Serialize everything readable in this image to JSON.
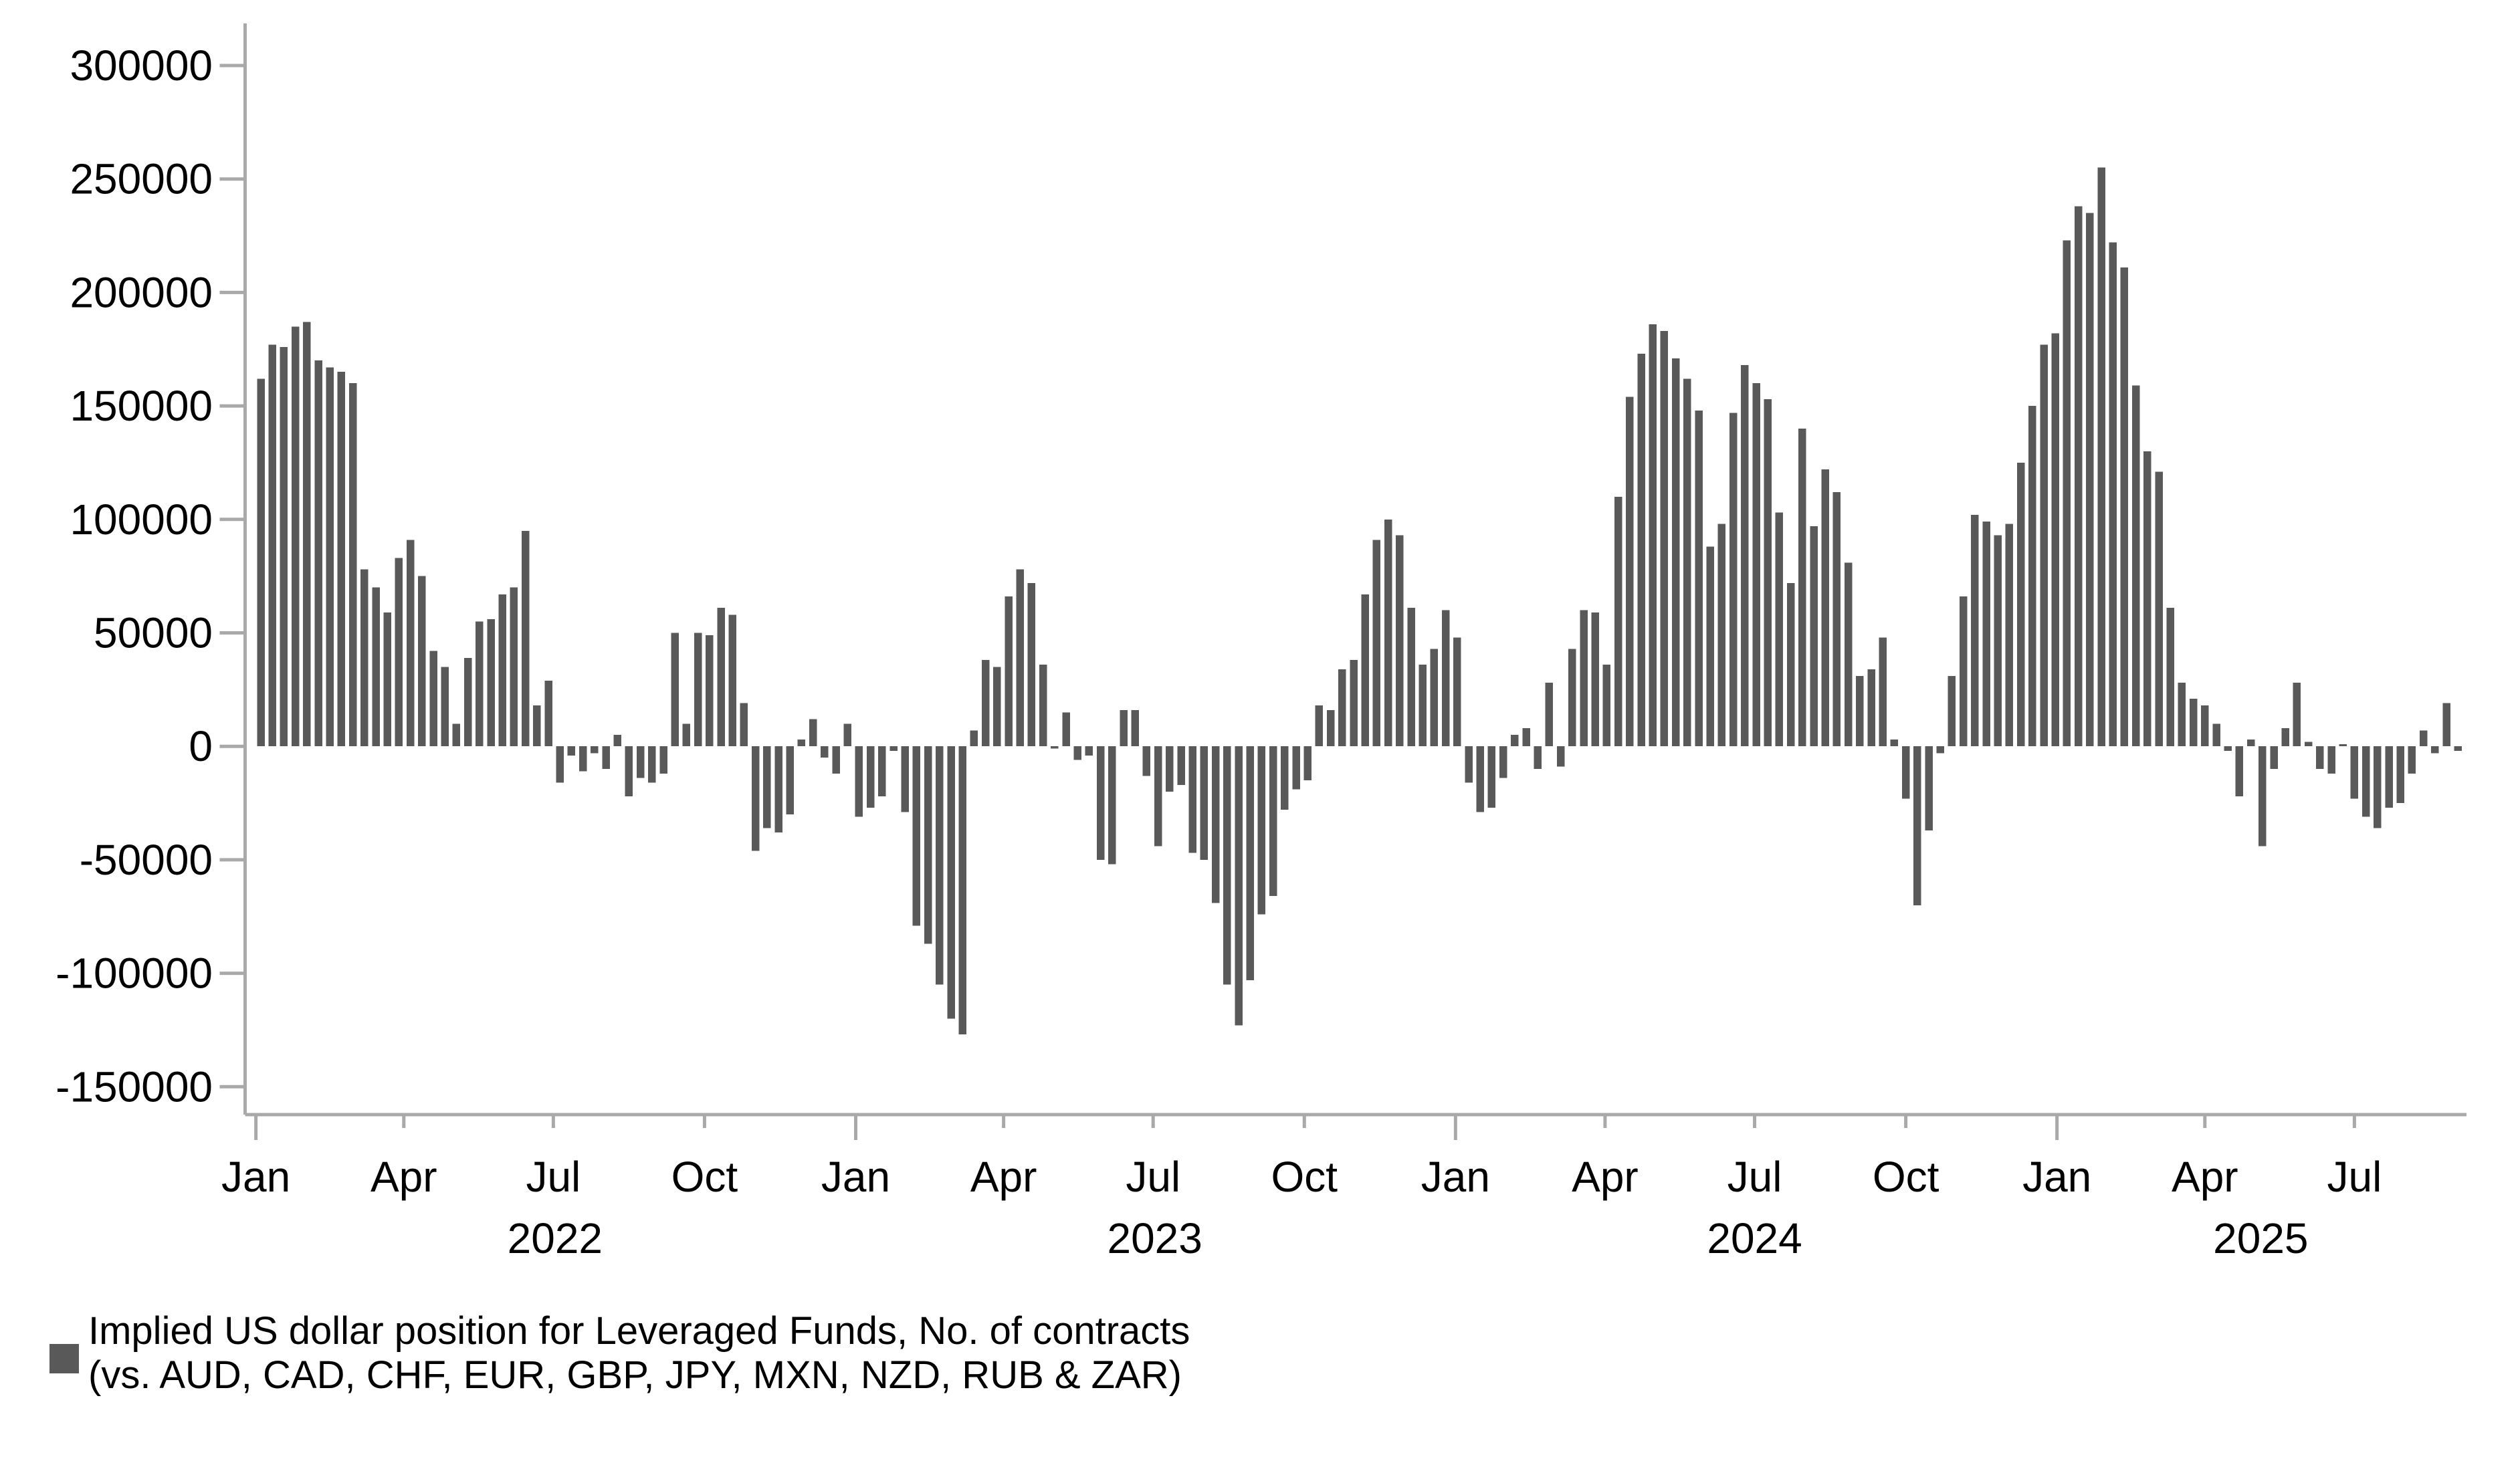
{
  "chart_data": {
    "type": "bar",
    "title": "",
    "xlabel": "",
    "ylabel": "",
    "ylim": [
      -150000,
      300000
    ],
    "grid": false,
    "legend_position": "bottom-left",
    "bar_color": "#595959",
    "axis_color": "#a9a9a9",
    "text_color": "#000000",
    "yticks": [
      300000,
      250000,
      200000,
      150000,
      100000,
      50000,
      0,
      -50000,
      -100000,
      -150000
    ],
    "xticks": [
      {
        "date": "2022-01-01",
        "label": "Jan",
        "major": true
      },
      {
        "date": "2022-04-01",
        "label": "Apr",
        "major": false
      },
      {
        "date": "2022-07-01",
        "label": "Jul",
        "major": false
      },
      {
        "date": "2022-10-01",
        "label": "Oct",
        "major": false
      },
      {
        "date": "2023-01-01",
        "label": "Jan",
        "major": true
      },
      {
        "date": "2023-04-01",
        "label": "Apr",
        "major": false
      },
      {
        "date": "2023-07-01",
        "label": "Jul",
        "major": false
      },
      {
        "date": "2023-10-01",
        "label": "Oct",
        "major": false
      },
      {
        "date": "2024-01-01",
        "label": "Jan",
        "major": true
      },
      {
        "date": "2024-04-01",
        "label": "Apr",
        "major": false
      },
      {
        "date": "2024-07-01",
        "label": "Jul",
        "major": false
      },
      {
        "date": "2024-10-01",
        "label": "Oct",
        "major": false
      },
      {
        "date": "2025-01-01",
        "label": "Jan",
        "major": true
      },
      {
        "date": "2025-04-01",
        "label": "Apr",
        "major": false
      },
      {
        "date": "2025-07-01",
        "label": "Jul",
        "major": false
      }
    ],
    "year_labels": [
      {
        "label": "2022",
        "date": "2022-07-02"
      },
      {
        "label": "2023",
        "date": "2023-07-02"
      },
      {
        "label": "2024",
        "date": "2024-07-01"
      },
      {
        "label": "2025",
        "date": "2025-05-05"
      }
    ],
    "legend": {
      "line1": "Implied US dollar position for Leveraged Funds, No. of contracts",
      "line2": "(vs. AUD, CAD, CHF, EUR, GBP, JPY, MXN, NZD, RUB & ZAR)"
    },
    "series_name": "Implied US dollar position for Leveraged Funds",
    "weeks": [
      [
        "2022-01-04",
        162000
      ],
      [
        "2022-01-11",
        177000
      ],
      [
        "2022-01-18",
        176000
      ],
      [
        "2022-01-25",
        185000
      ],
      [
        "2022-02-01",
        187000
      ],
      [
        "2022-02-08",
        170000
      ],
      [
        "2022-02-15",
        167000
      ],
      [
        "2022-02-22",
        165000
      ],
      [
        "2022-03-01",
        160000
      ],
      [
        "2022-03-08",
        78000
      ],
      [
        "2022-03-15",
        70000
      ],
      [
        "2022-03-22",
        59000
      ],
      [
        "2022-03-29",
        83000
      ],
      [
        "2022-04-05",
        91000
      ],
      [
        "2022-04-12",
        75000
      ],
      [
        "2022-04-19",
        42000
      ],
      [
        "2022-04-26",
        35000
      ],
      [
        "2022-05-03",
        10000
      ],
      [
        "2022-05-10",
        39000
      ],
      [
        "2022-05-17",
        55000
      ],
      [
        "2022-05-24",
        56000
      ],
      [
        "2022-05-31",
        67000
      ],
      [
        "2022-06-07",
        70000
      ],
      [
        "2022-06-14",
        95000
      ],
      [
        "2022-06-21",
        18000
      ],
      [
        "2022-06-28",
        29000
      ],
      [
        "2022-07-05",
        -16000
      ],
      [
        "2022-07-12",
        -4000
      ],
      [
        "2022-07-19",
        -11000
      ],
      [
        "2022-07-26",
        -3000
      ],
      [
        "2022-08-02",
        -10000
      ],
      [
        "2022-08-09",
        5000
      ],
      [
        "2022-08-16",
        -22000
      ],
      [
        "2022-08-23",
        -14000
      ],
      [
        "2022-08-30",
        -16000
      ],
      [
        "2022-09-06",
        -12000
      ],
      [
        "2022-09-13",
        50000
      ],
      [
        "2022-09-20",
        10000
      ],
      [
        "2022-09-27",
        50000
      ],
      [
        "2022-10-04",
        49000
      ],
      [
        "2022-10-11",
        61000
      ],
      [
        "2022-10-18",
        58000
      ],
      [
        "2022-10-25",
        19000
      ],
      [
        "2022-11-01",
        -46000
      ],
      [
        "2022-11-08",
        -36000
      ],
      [
        "2022-11-15",
        -38000
      ],
      [
        "2022-11-22",
        -30000
      ],
      [
        "2022-11-29",
        3000
      ],
      [
        "2022-12-06",
        12000
      ],
      [
        "2022-12-13",
        -5000
      ],
      [
        "2022-12-20",
        -12000
      ],
      [
        "2022-12-27",
        10000
      ],
      [
        "2023-01-03",
        -31000
      ],
      [
        "2023-01-10",
        -27000
      ],
      [
        "2023-01-17",
        -22000
      ],
      [
        "2023-01-24",
        -2000
      ],
      [
        "2023-01-31",
        -29000
      ],
      [
        "2023-02-07",
        -79000
      ],
      [
        "2023-02-14",
        -87000
      ],
      [
        "2023-02-21",
        -105000
      ],
      [
        "2023-02-28",
        -120000
      ],
      [
        "2023-03-07",
        -127000
      ],
      [
        "2023-03-14",
        7000
      ],
      [
        "2023-03-21",
        38000
      ],
      [
        "2023-03-28",
        35000
      ],
      [
        "2023-04-04",
        66000
      ],
      [
        "2023-04-11",
        78000
      ],
      [
        "2023-04-18",
        72000
      ],
      [
        "2023-04-25",
        36000
      ],
      [
        "2023-05-02",
        -1000
      ],
      [
        "2023-05-09",
        15000
      ],
      [
        "2023-05-16",
        -6000
      ],
      [
        "2023-05-23",
        -4000
      ],
      [
        "2023-05-30",
        -50000
      ],
      [
        "2023-06-06",
        -52000
      ],
      [
        "2023-06-13",
        16000
      ],
      [
        "2023-06-20",
        16000
      ],
      [
        "2023-06-27",
        -13000
      ],
      [
        "2023-07-04",
        -44000
      ],
      [
        "2023-07-11",
        -20000
      ],
      [
        "2023-07-18",
        -17000
      ],
      [
        "2023-07-25",
        -47000
      ],
      [
        "2023-08-01",
        -50000
      ],
      [
        "2023-08-08",
        -69000
      ],
      [
        "2023-08-15",
        -105000
      ],
      [
        "2023-08-22",
        -123000
      ],
      [
        "2023-08-29",
        -103000
      ],
      [
        "2023-09-05",
        -74000
      ],
      [
        "2023-09-12",
        -66000
      ],
      [
        "2023-09-19",
        -28000
      ],
      [
        "2023-09-26",
        -19000
      ],
      [
        "2023-10-03",
        -15000
      ],
      [
        "2023-10-10",
        18000
      ],
      [
        "2023-10-17",
        16000
      ],
      [
        "2023-10-24",
        34000
      ],
      [
        "2023-10-31",
        38000
      ],
      [
        "2023-11-07",
        67000
      ],
      [
        "2023-11-14",
        91000
      ],
      [
        "2023-11-21",
        100000
      ],
      [
        "2023-11-28",
        93000
      ],
      [
        "2023-12-05",
        61000
      ],
      [
        "2023-12-12",
        36000
      ],
      [
        "2023-12-19",
        43000
      ],
      [
        "2023-12-26",
        60000
      ],
      [
        "2024-01-02",
        48000
      ],
      [
        "2024-01-09",
        -16000
      ],
      [
        "2024-01-16",
        -29000
      ],
      [
        "2024-01-23",
        -27000
      ],
      [
        "2024-01-30",
        -14000
      ],
      [
        "2024-02-06",
        5000
      ],
      [
        "2024-02-13",
        8000
      ],
      [
        "2024-02-20",
        -10000
      ],
      [
        "2024-02-27",
        28000
      ],
      [
        "2024-03-05",
        -9000
      ],
      [
        "2024-03-12",
        43000
      ],
      [
        "2024-03-19",
        60000
      ],
      [
        "2024-03-26",
        59000
      ],
      [
        "2024-04-02",
        36000
      ],
      [
        "2024-04-09",
        110000
      ],
      [
        "2024-04-16",
        154000
      ],
      [
        "2024-04-23",
        173000
      ],
      [
        "2024-04-30",
        186000
      ],
      [
        "2024-05-07",
        183000
      ],
      [
        "2024-05-14",
        171000
      ],
      [
        "2024-05-21",
        162000
      ],
      [
        "2024-05-28",
        148000
      ],
      [
        "2024-06-04",
        88000
      ],
      [
        "2024-06-11",
        98000
      ],
      [
        "2024-06-18",
        147000
      ],
      [
        "2024-06-25",
        168000
      ],
      [
        "2024-07-02",
        160000
      ],
      [
        "2024-07-09",
        153000
      ],
      [
        "2024-07-16",
        103000
      ],
      [
        "2024-07-23",
        72000
      ],
      [
        "2024-07-30",
        140000
      ],
      [
        "2024-08-06",
        97000
      ],
      [
        "2024-08-13",
        122000
      ],
      [
        "2024-08-20",
        112000
      ],
      [
        "2024-08-27",
        81000
      ],
      [
        "2024-09-03",
        31000
      ],
      [
        "2024-09-10",
        34000
      ],
      [
        "2024-09-17",
        48000
      ],
      [
        "2024-09-24",
        3000
      ],
      [
        "2024-10-01",
        -23000
      ],
      [
        "2024-10-08",
        -70000
      ],
      [
        "2024-10-15",
        -37000
      ],
      [
        "2024-10-22",
        -3000
      ],
      [
        "2024-10-29",
        31000
      ],
      [
        "2024-11-05",
        66000
      ],
      [
        "2024-11-12",
        102000
      ],
      [
        "2024-11-19",
        99000
      ],
      [
        "2024-11-26",
        93000
      ],
      [
        "2024-12-03",
        98000
      ],
      [
        "2024-12-10",
        125000
      ],
      [
        "2024-12-17",
        150000
      ],
      [
        "2024-12-24",
        177000
      ],
      [
        "2024-12-31",
        182000
      ],
      [
        "2025-01-07",
        223000
      ],
      [
        "2025-01-14",
        238000
      ],
      [
        "2025-01-21",
        235000
      ],
      [
        "2025-01-28",
        255000
      ],
      [
        "2025-02-04",
        222000
      ],
      [
        "2025-02-11",
        211000
      ],
      [
        "2025-02-18",
        159000
      ],
      [
        "2025-02-25",
        130000
      ],
      [
        "2025-03-04",
        121000
      ],
      [
        "2025-03-11",
        61000
      ],
      [
        "2025-03-18",
        28000
      ],
      [
        "2025-03-25",
        21000
      ],
      [
        "2025-04-01",
        18000
      ],
      [
        "2025-04-08",
        10000
      ],
      [
        "2025-04-15",
        -2000
      ],
      [
        "2025-04-22",
        -22000
      ],
      [
        "2025-04-29",
        3000
      ],
      [
        "2025-05-06",
        -44000
      ],
      [
        "2025-05-13",
        -10000
      ],
      [
        "2025-05-20",
        8000
      ],
      [
        "2025-05-27",
        28000
      ],
      [
        "2025-06-03",
        2000
      ],
      [
        "2025-06-10",
        -10000
      ],
      [
        "2025-06-17",
        -12000
      ],
      [
        "2025-06-24",
        1000
      ],
      [
        "2025-07-01",
        -23000
      ],
      [
        "2025-07-08",
        -31000
      ],
      [
        "2025-07-15",
        -36000
      ],
      [
        "2025-07-22",
        -27000
      ],
      [
        "2025-07-29",
        -25000
      ],
      [
        "2025-08-05",
        -12000
      ],
      [
        "2025-08-12",
        7000
      ],
      [
        "2025-08-19",
        -3000
      ],
      [
        "2025-08-26",
        19000
      ],
      [
        "2025-09-02",
        -2000
      ]
    ]
  }
}
